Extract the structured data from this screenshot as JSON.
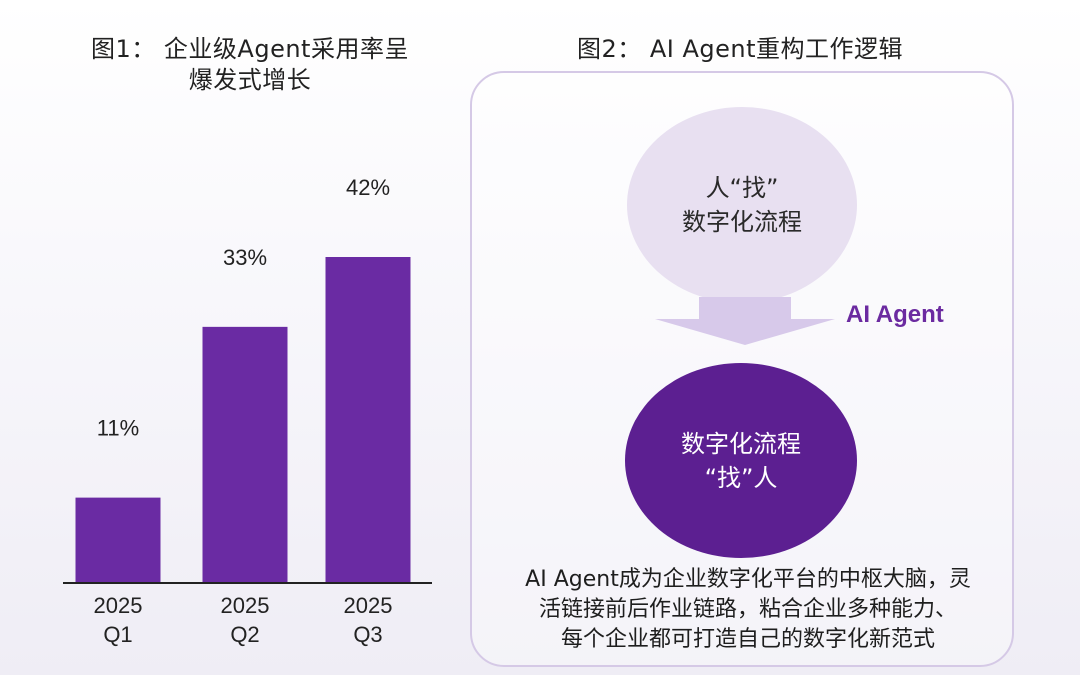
{
  "fig1": {
    "title_line1": "图1： 企业级Agent采用率呈",
    "title_line2": "爆发式增长"
  },
  "chart_data": {
    "type": "bar",
    "categories": [
      [
        "2025",
        "Q1"
      ],
      [
        "2025",
        "Q2"
      ],
      [
        "2025",
        "Q3"
      ]
    ],
    "values": [
      11,
      33,
      42
    ],
    "data_labels": [
      "11%",
      "33%",
      "42%"
    ],
    "ylim": [
      0,
      42
    ],
    "bar_color": "#6a2ba3",
    "grid": false
  },
  "fig2": {
    "title": "图2： AI Agent重构工作逻辑",
    "top_circle": [
      "人“找”",
      "数字化流程"
    ],
    "arrow_label": "AI Agent",
    "bottom_circle": [
      "数字化流程",
      "“找”人"
    ],
    "description": [
      "AI Agent成为企业数字化平台的中枢大脑，灵",
      "活链接前后作业链路，粘合企业多种能力、",
      "每个企业都可打造自己的数字化新范式"
    ],
    "colors": {
      "top_circle": "#e8e0f1",
      "bottom_circle": "#5c1f91",
      "arrow": "#d7c9ea",
      "arrow_label": "#6b2aa0",
      "panel_border": "#d5c9e6"
    }
  }
}
